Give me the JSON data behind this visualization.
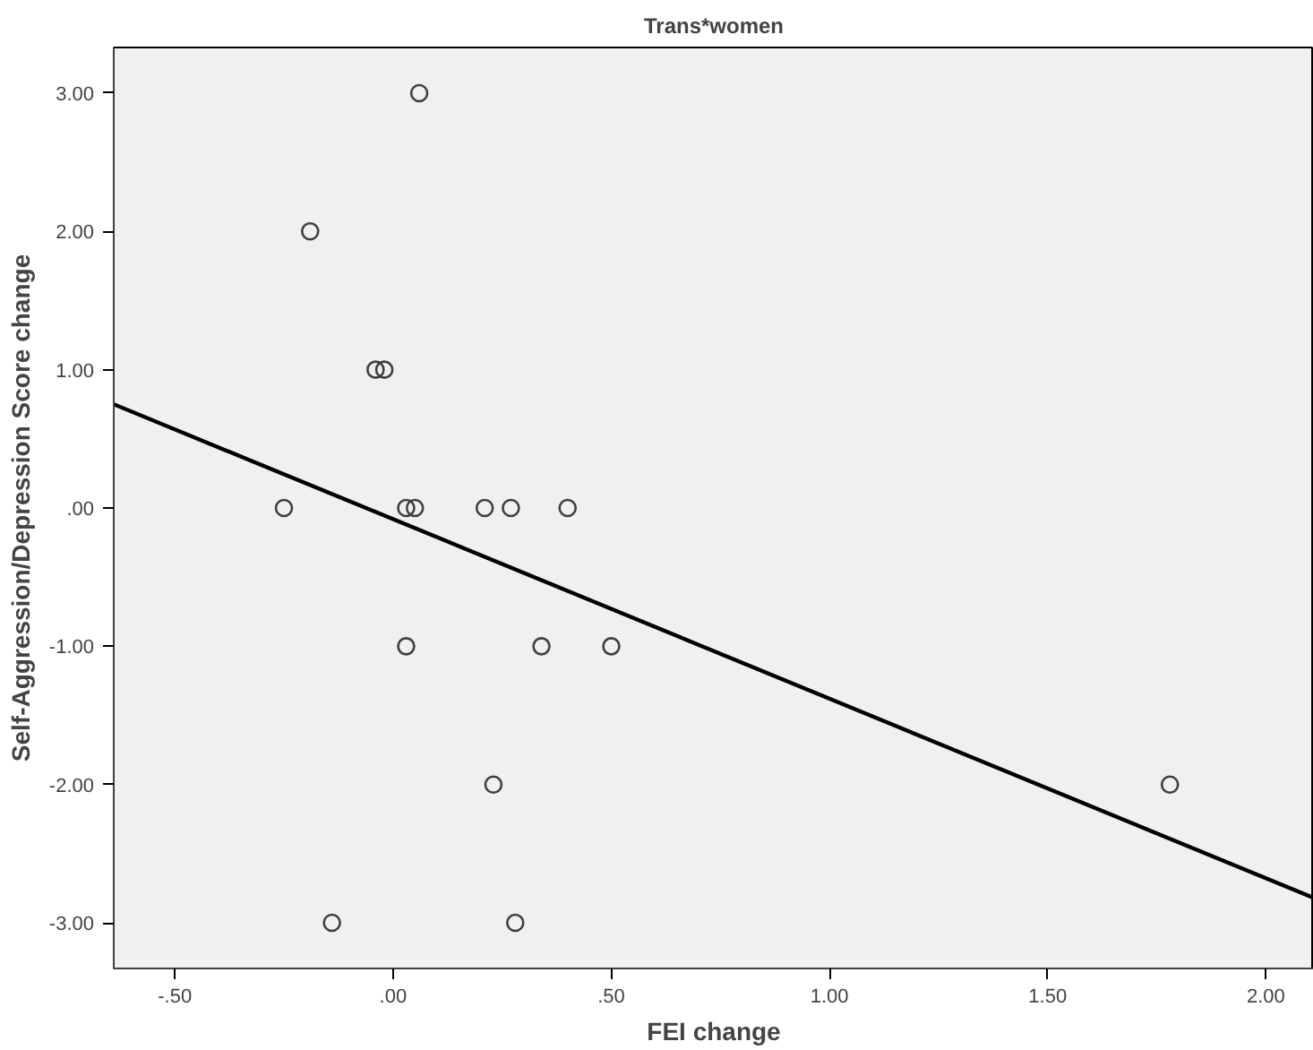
{
  "chart_data": {
    "type": "scatter",
    "title": "Trans*women",
    "xlabel": "FEI change",
    "ylabel": "Self-Aggression/Depression Score change",
    "x": [
      0.06,
      -0.19,
      -0.04,
      -0.02,
      -0.25,
      0.03,
      0.05,
      0.21,
      0.27,
      0.4,
      0.03,
      0.34,
      0.5,
      0.23,
      1.78,
      -0.14,
      0.28
    ],
    "series": [
      {
        "color": "#404040",
        "marker": "circle",
        "values": [
          3,
          2,
          1,
          1,
          0,
          0,
          0,
          0,
          0,
          0,
          -1,
          -1,
          -1,
          -2,
          -2,
          -3,
          -3
        ]
      },
      {
        "type": "line",
        "color": "#000000",
        "line_style": "solid",
        "x": [
          -0.64,
          2.11
        ],
        "values": [
          0.75,
          -2.82
        ]
      }
    ],
    "xlim": [
      -0.64,
      2.11
    ],
    "ylim": [
      -3.33,
      3.33
    ],
    "xticks": [
      {
        "value": -0.5,
        "label": "-.50"
      },
      {
        "value": 0,
        "label": ".00"
      },
      {
        "value": 0.5,
        "label": ".50"
      },
      {
        "value": 1,
        "label": "1.00"
      },
      {
        "value": 1.5,
        "label": "1.50"
      },
      {
        "value": 2,
        "label": "2.00"
      }
    ],
    "yticks": [
      {
        "value": -3,
        "label": "-3.00"
      },
      {
        "value": -2,
        "label": "-2.00"
      },
      {
        "value": -1,
        "label": "-1.00"
      },
      {
        "value": 0,
        "label": ".00"
      },
      {
        "value": 1,
        "label": "1.00"
      },
      {
        "value": 2,
        "label": "2.00"
      },
      {
        "value": 3,
        "label": "3.00"
      }
    ],
    "grid": false
  }
}
